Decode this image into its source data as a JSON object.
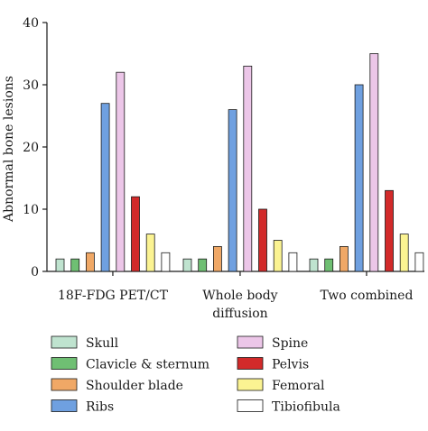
{
  "chart_data": {
    "type": "bar",
    "title": "",
    "xlabel": "",
    "ylabel": "Abnormal bone lesions",
    "ylim": [
      0,
      40
    ],
    "yticks": [
      0,
      10,
      20,
      30,
      40
    ],
    "grid": false,
    "legend_placement": "bottom",
    "categories": [
      [
        "18F-FDG PET/CT"
      ],
      [
        "Whole body",
        "diffusion"
      ],
      [
        "Two combined"
      ]
    ],
    "series": [
      {
        "name": "Skull",
        "color": "#bfe3cf",
        "values": [
          2,
          2,
          2
        ]
      },
      {
        "name": "Clavicle & sternum",
        "color": "#6fbf73",
        "values": [
          2,
          2,
          2
        ]
      },
      {
        "name": "Shoulder blade",
        "color": "#f0a866",
        "values": [
          3,
          4,
          4
        ]
      },
      {
        "name": "Ribs",
        "color": "#6fa0e0",
        "values": [
          27,
          26,
          30
        ]
      },
      {
        "name": "Spine",
        "color": "#ecc6e8",
        "values": [
          32,
          33,
          35
        ]
      },
      {
        "name": "Pelvis",
        "color": "#d22a2a",
        "values": [
          12,
          10,
          13
        ]
      },
      {
        "name": "Femoral",
        "color": "#fbf392",
        "values": [
          6,
          5,
          6
        ]
      },
      {
        "name": "Tibiofibula",
        "color": "#ffffff",
        "values": [
          3,
          3,
          3
        ]
      }
    ]
  }
}
